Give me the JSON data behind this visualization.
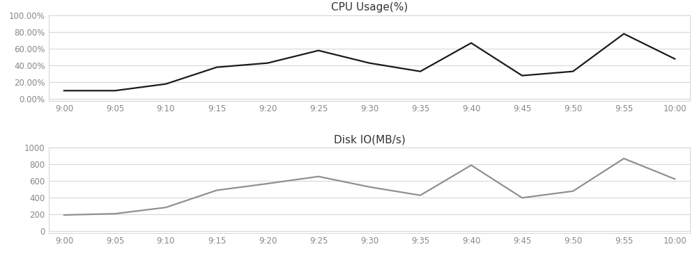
{
  "time_labels": [
    "9:00",
    "9:05",
    "9:10",
    "9:15",
    "9:20",
    "9:25",
    "9:30",
    "9:35",
    "9:40",
    "9:45",
    "9:50",
    "9:55",
    "10:00"
  ],
  "cpu_values": [
    0.1,
    0.1,
    0.18,
    0.38,
    0.43,
    0.58,
    0.43,
    0.33,
    0.67,
    0.28,
    0.33,
    0.78,
    0.48
  ],
  "disk_values": [
    195,
    210,
    285,
    490,
    570,
    655,
    530,
    430,
    790,
    400,
    480,
    870,
    625
  ],
  "cpu_title": "CPU Usage(%)",
  "disk_title": "Disk IO(MB/s)",
  "cpu_yticks": [
    0.0,
    0.2,
    0.4,
    0.6,
    0.8,
    1.0
  ],
  "cpu_ytick_labels": [
    "0.00%",
    "20.00%",
    "40.00%",
    "60.00%",
    "80.00%",
    "100.00%"
  ],
  "disk_yticks": [
    0,
    200,
    400,
    600,
    800,
    1000
  ],
  "disk_ytick_labels": [
    "0",
    "200",
    "400",
    "600",
    "800",
    "1000"
  ],
  "line_color_cpu": "#1a1a1a",
  "line_color_disk": "#909090",
  "background_color": "#ffffff",
  "grid_color": "#d8d8d8",
  "title_fontsize": 11,
  "tick_fontsize": 8.5,
  "line_width": 1.6,
  "fig_width": 10.0,
  "fig_height": 3.68
}
